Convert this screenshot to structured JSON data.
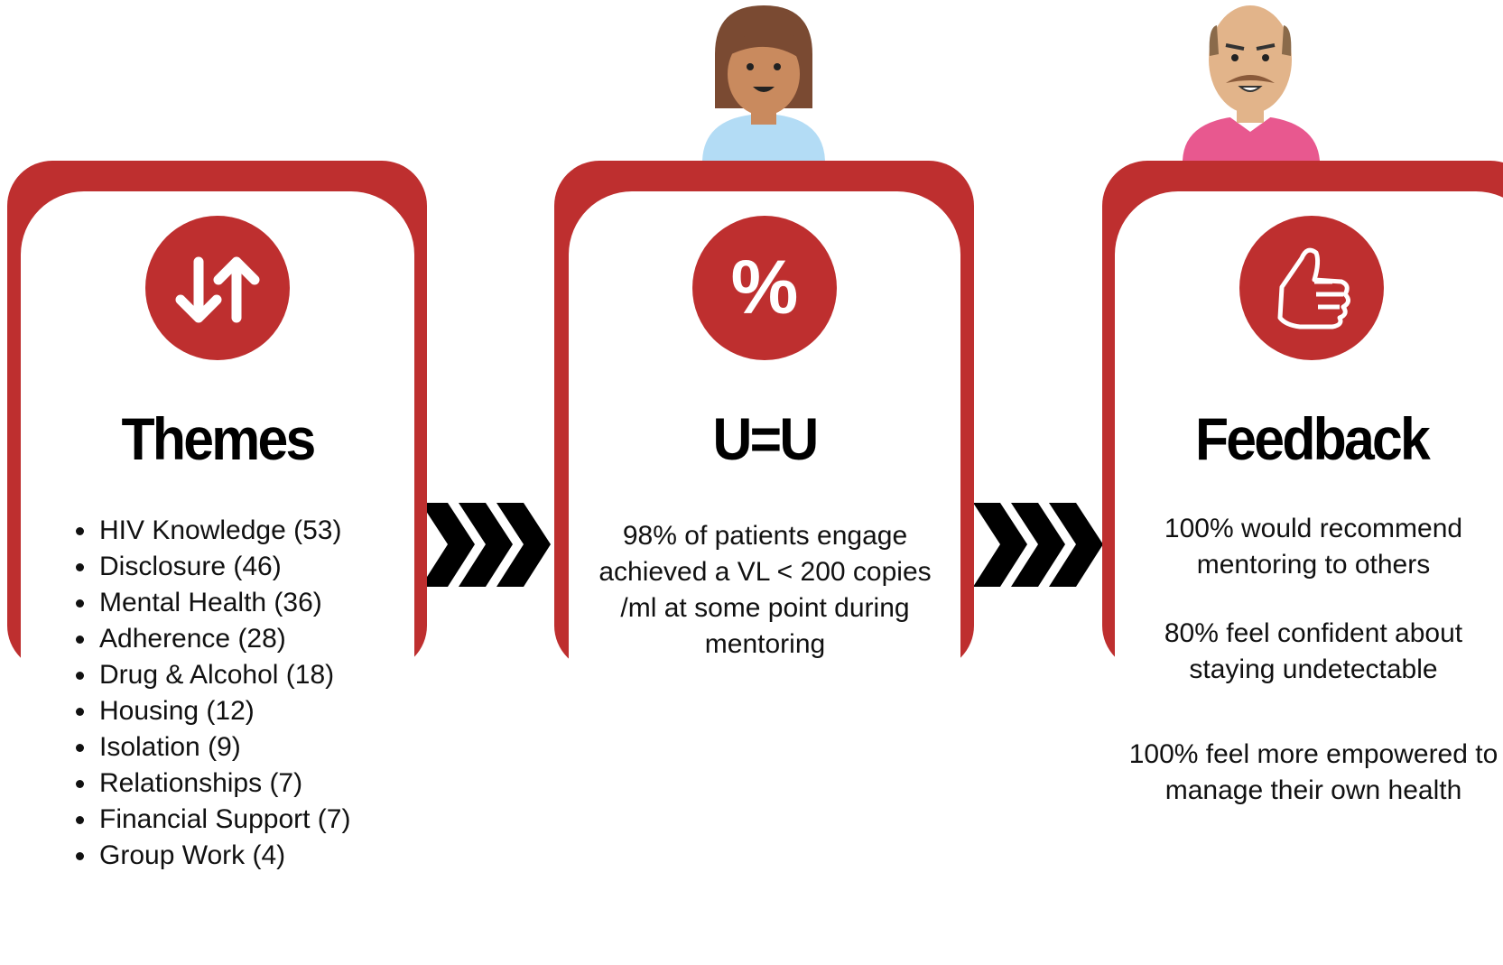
{
  "cards": [
    {
      "title": "Themes",
      "items": [
        "HIV Knowledge (53)",
        "Disclosure (46)",
        "Mental Health (36)",
        "Adherence (28)",
        "Drug & Alcohol (18)",
        "Housing (12)",
        "Isolation (9)",
        "Relationships (7)",
        "Financial Support (7)",
        "Group Work (4)"
      ]
    },
    {
      "title": "U=U",
      "icon_text": "%",
      "paragraphs": [
        "98% of patients engage achieved a VL < 200 copies /ml at some point during mentoring"
      ]
    },
    {
      "title": "Feedback",
      "paragraphs": [
        "100% would recommend mentoring to others",
        "80% feel confident about staying undetectable",
        "100% feel more empowered to manage their own health"
      ]
    }
  ]
}
